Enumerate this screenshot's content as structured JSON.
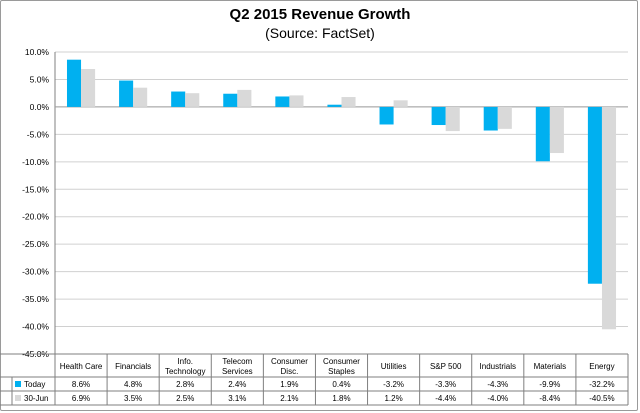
{
  "chart_data": {
    "type": "bar",
    "title": "Q2 2015 Revenue Growth",
    "subtitle": "(Source: FactSet)",
    "categories": [
      [
        "Health Care"
      ],
      [
        "Financials"
      ],
      [
        "Info.",
        "Technology"
      ],
      [
        "Telecom",
        "Services"
      ],
      [
        "Consumer",
        "Disc."
      ],
      [
        "Consumer",
        "Staples"
      ],
      [
        "Utilities"
      ],
      [
        "S&P 500"
      ],
      [
        "Industrials"
      ],
      [
        "Materials"
      ],
      [
        "Energy"
      ]
    ],
    "series": [
      {
        "name": "Today",
        "color": "#00b0f0",
        "values": [
          8.6,
          4.8,
          2.8,
          2.4,
          1.9,
          0.4,
          -3.2,
          -3.3,
          -4.3,
          -9.9,
          -32.2
        ],
        "labels": [
          "8.6%",
          "4.8%",
          "2.8%",
          "2.4%",
          "1.9%",
          "0.4%",
          "-3.2%",
          "-3.3%",
          "-4.3%",
          "-9.9%",
          "-32.2%"
        ]
      },
      {
        "name": "30-Jun",
        "color": "#d9d9d9",
        "values": [
          6.9,
          3.5,
          2.5,
          3.1,
          2.1,
          1.8,
          1.2,
          -4.4,
          -4.0,
          -8.4,
          -40.5
        ],
        "labels": [
          "6.9%",
          "3.5%",
          "2.5%",
          "3.1%",
          "2.1%",
          "1.8%",
          "1.2%",
          "-4.4%",
          "-4.0%",
          "-8.4%",
          "-40.5%"
        ]
      }
    ],
    "ylim": [
      -45,
      10
    ],
    "yticks": [
      10,
      5,
      0,
      -5,
      -10,
      -15,
      -20,
      -25,
      -30,
      -35,
      -40,
      -45
    ],
    "ytick_labels": [
      "10.0%",
      "5.0%",
      "0.0%",
      "-5.0%",
      "-10.0%",
      "-15.0%",
      "-20.0%",
      "-25.0%",
      "-30.0%",
      "-35.0%",
      "-40.0%",
      "-45.0%"
    ],
    "grid": true,
    "legend": "data-table"
  }
}
